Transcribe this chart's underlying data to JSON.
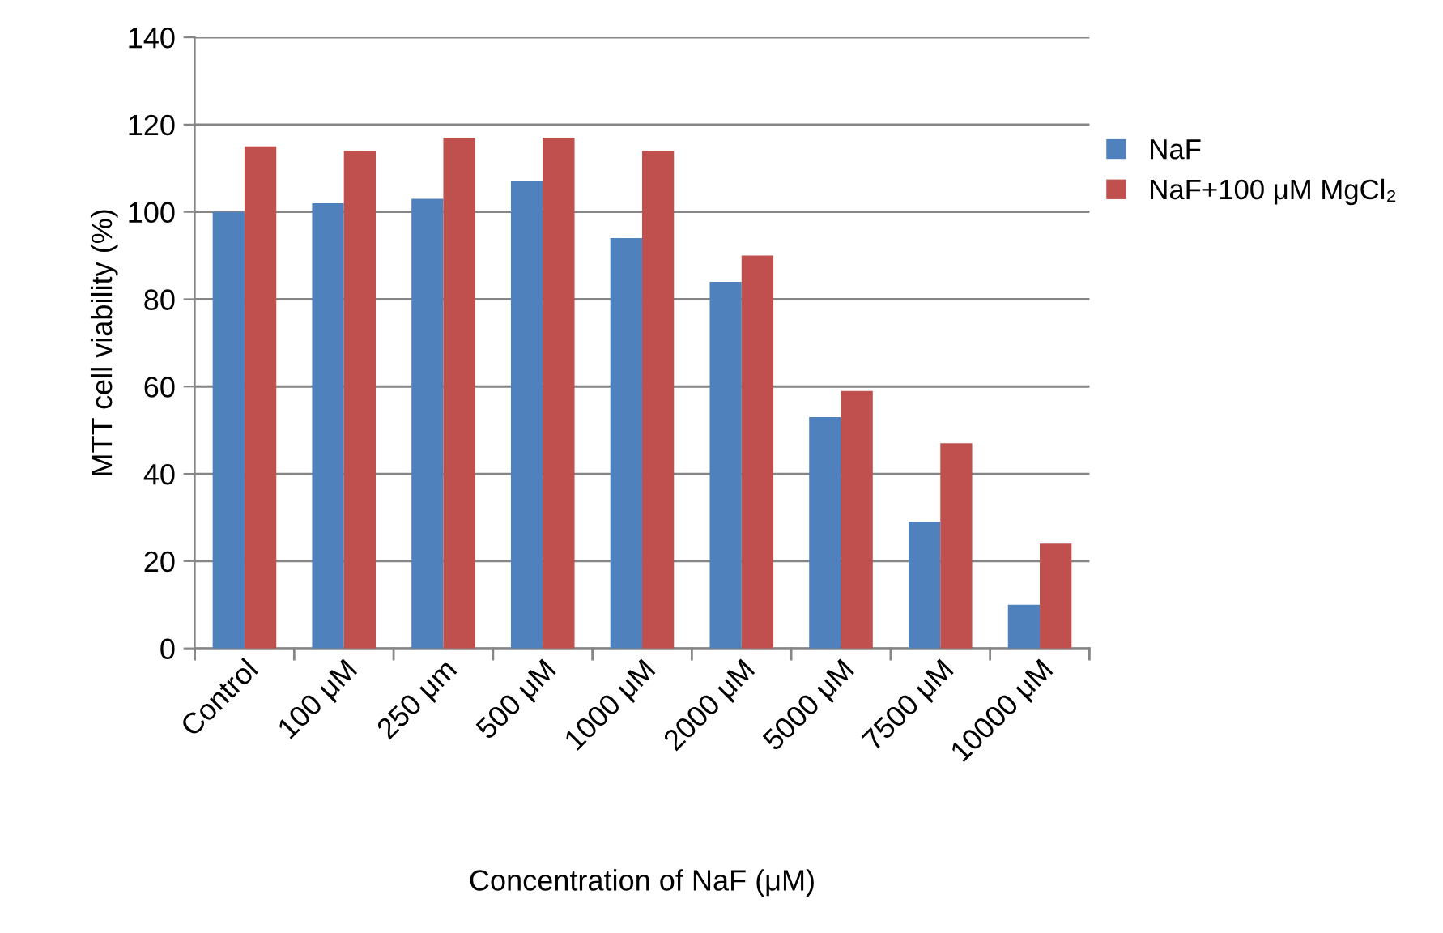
{
  "chart_data": {
    "type": "bar",
    "xlabel": "Concentration of NaF (μM)",
    "ylabel": "MTT cell viability (%)",
    "categories": [
      "Control",
      "100 μM",
      "250 μm",
      "500 μM",
      "1000 μM",
      "2000 μM",
      "5000 μM",
      "7500 μM",
      "10000 μM"
    ],
    "series": [
      {
        "name": "NaF",
        "color": "#4f81bd",
        "values": [
          100,
          102,
          103,
          107,
          94,
          84,
          53,
          29,
          10
        ]
      },
      {
        "name": "NaF+100 μM MgCl₂",
        "color": "#c0504d",
        "values": [
          115,
          114,
          117,
          117,
          114,
          90,
          59,
          47,
          24
        ]
      }
    ],
    "ylim": [
      0,
      140
    ],
    "yticks": [
      0,
      20,
      40,
      60,
      80,
      100,
      120,
      140
    ],
    "grid": "y",
    "legend": "right"
  }
}
